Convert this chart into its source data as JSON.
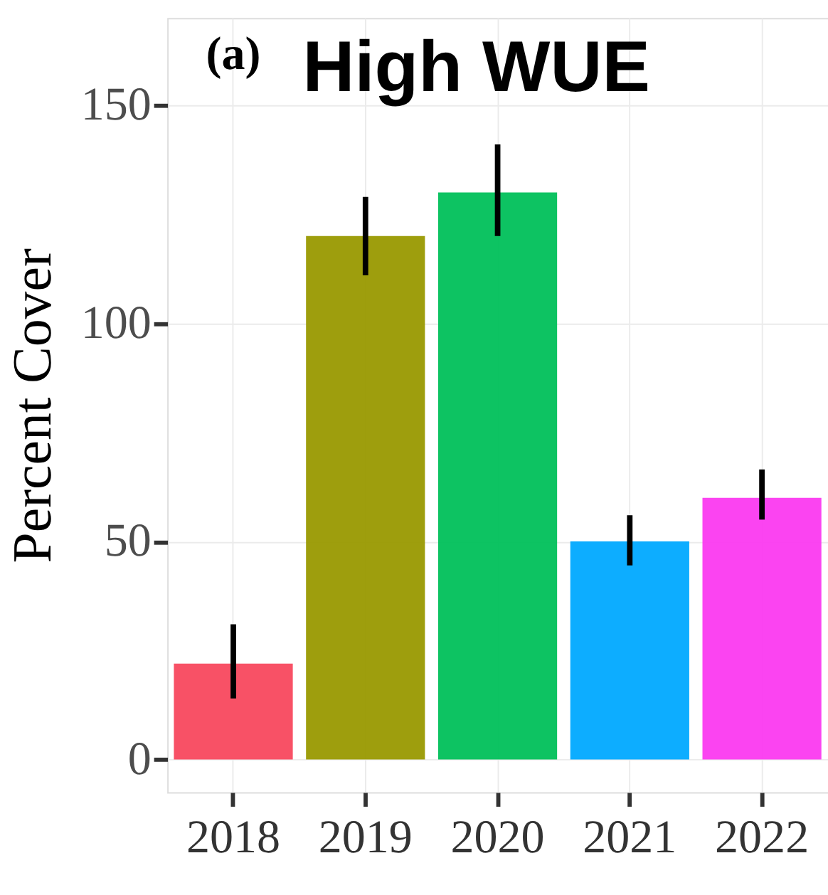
{
  "chart_data": {
    "type": "bar",
    "title": "High WUE",
    "annotations": [
      "(a)"
    ],
    "ylabel": "Percent Cover",
    "categories": [
      "2018",
      "2019",
      "2020",
      "2021",
      "2022"
    ],
    "values": [
      22,
      120,
      130,
      50,
      60
    ],
    "colors": [
      "#f8485e",
      "#999900",
      "#00c05a",
      "#00a9ff",
      "#fb3af0"
    ],
    "errors": [
      [
        14,
        31
      ],
      [
        111,
        129
      ],
      [
        120,
        141
      ],
      [
        44.5,
        56
      ],
      [
        55,
        66.5
      ]
    ],
    "ylim": [
      -7.5,
      170
    ],
    "yticks": [
      0,
      50,
      100,
      150
    ],
    "grid": true
  }
}
